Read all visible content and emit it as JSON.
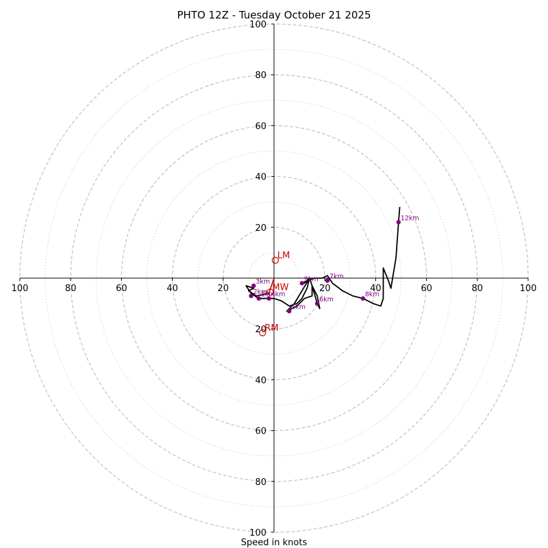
{
  "chart_data": {
    "type": "hodograph",
    "title": "PHTO 12Z - Tuesday October 21 2025",
    "xlabel": "Speed in knots",
    "range": [
      -100,
      100
    ],
    "ring_speeds_major": [
      20,
      40,
      60,
      80,
      100
    ],
    "ring_speeds_minor": [
      10,
      30,
      50,
      70,
      90
    ],
    "x_tick_labels": [
      "100",
      "80",
      "60",
      "40",
      "20",
      "20",
      "40",
      "60",
      "80",
      "100"
    ],
    "y_tick_labels": [
      "100",
      "80",
      "60",
      "40",
      "20",
      "20",
      "40",
      "60",
      "80",
      "100"
    ],
    "x_tick_values": [
      -100,
      -80,
      -60,
      -40,
      -20,
      20,
      40,
      60,
      80,
      100
    ],
    "y_tick_values": [
      100,
      80,
      60,
      40,
      20,
      -20,
      -40,
      -60,
      -80,
      -100
    ],
    "hodo_trace": [
      [
        -2,
        -6
      ],
      [
        -7,
        -7
      ],
      [
        -10,
        -5
      ],
      [
        -8,
        -4
      ],
      [
        -11,
        -3
      ],
      [
        -9,
        -6
      ],
      [
        -6,
        -8
      ],
      [
        -3,
        -8
      ],
      [
        0,
        -8
      ],
      [
        3,
        -9
      ],
      [
        6,
        -11
      ],
      [
        9,
        -10
      ],
      [
        11,
        -8
      ],
      [
        13,
        -4
      ],
      [
        14,
        0
      ],
      [
        11,
        -5
      ],
      [
        8,
        -10
      ],
      [
        5,
        -13
      ],
      [
        9,
        -11
      ],
      [
        12,
        -8
      ],
      [
        15,
        -7
      ],
      [
        15,
        -3
      ],
      [
        17,
        -10
      ],
      [
        18,
        -12
      ],
      [
        17,
        -7
      ],
      [
        15,
        -3
      ],
      [
        14,
        0
      ],
      [
        12,
        -2
      ],
      [
        11,
        -2
      ],
      [
        13,
        -1
      ],
      [
        16,
        0
      ],
      [
        19,
        0
      ],
      [
        21,
        1
      ],
      [
        23,
        -2
      ],
      [
        27,
        -5
      ],
      [
        31,
        -7
      ],
      [
        35,
        -8
      ],
      [
        39,
        -10
      ],
      [
        42,
        -11
      ],
      [
        43,
        -8
      ],
      [
        43,
        4
      ],
      [
        45,
        -1
      ],
      [
        46,
        -4
      ],
      [
        48,
        8
      ],
      [
        49,
        22
      ],
      [
        49.5,
        28
      ]
    ],
    "height_labels": [
      {
        "label": "1km",
        "u": -6,
        "v": -8
      },
      {
        "label": "2km",
        "u": -9,
        "v": -7
      },
      {
        "label": "3km",
        "u": -8,
        "v": -3
      },
      {
        "label": "4km",
        "u": -2,
        "v": -8
      },
      {
        "label": "5km",
        "u": 6,
        "v": -13
      },
      {
        "label": "6km",
        "u": 17,
        "v": -10
      },
      {
        "label": "7km",
        "u": 21,
        "v": -1
      },
      {
        "label": "8km",
        "u": 35,
        "v": -8
      },
      {
        "label": "9km",
        "u": 11,
        "v": -2
      },
      {
        "label": "12km",
        "u": 49,
        "v": 22
      }
    ],
    "storm_motion_line": [
      [
        -2,
        -6
      ],
      [
        0,
        0
      ]
    ],
    "storm_motions": [
      {
        "label": "LM",
        "u": 0.5,
        "v": 7
      },
      {
        "label": "RM",
        "u": -4.5,
        "v": -21.5
      },
      {
        "label": "MW",
        "u": -1.5,
        "v": -5.5
      }
    ],
    "colors": {
      "trace": "#000000",
      "points": "#800080",
      "motion": "#cc0000",
      "grid": "#bbbbbb",
      "axis": "#000000"
    }
  }
}
